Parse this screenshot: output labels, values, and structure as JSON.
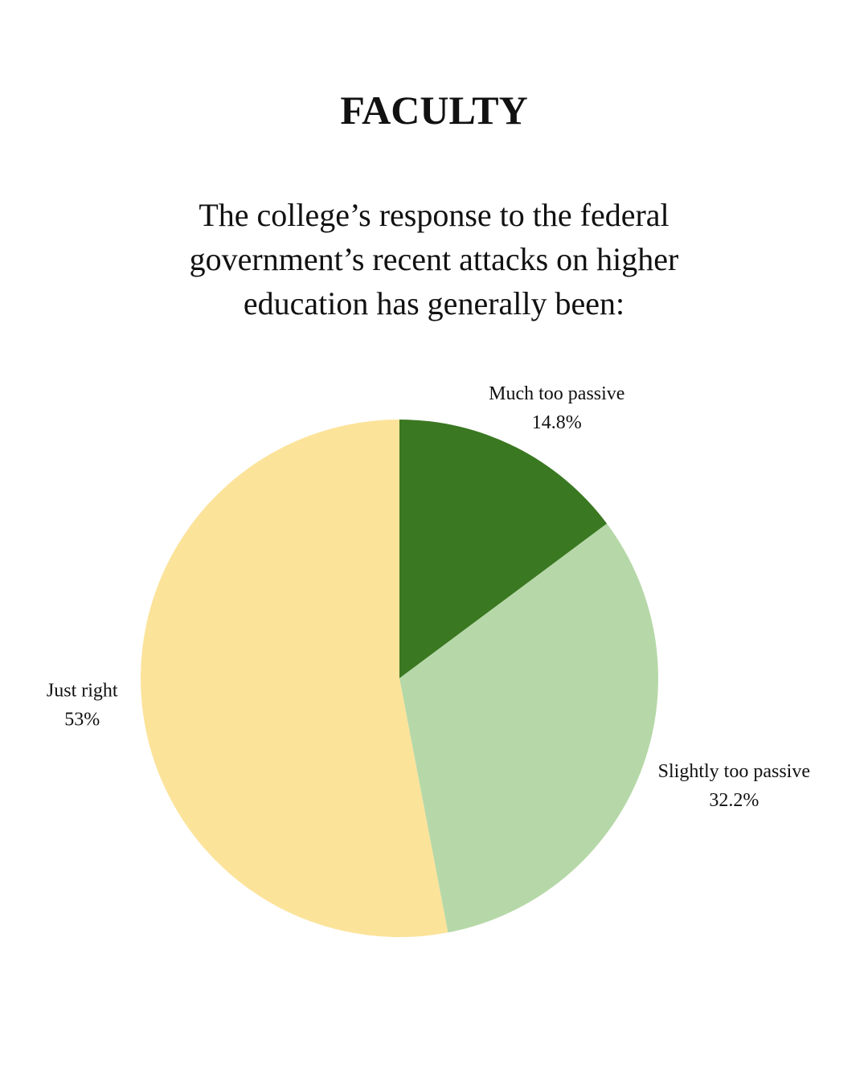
{
  "chart_data": {
    "type": "pie",
    "title": "FACULTY",
    "subtitle": "The college’s response to the federal government’s recent attacks on higher education has generally been:",
    "categories": [
      "Much too passive",
      "Slightly too passive",
      "Just right"
    ],
    "values": [
      14.8,
      32.2,
      53
    ],
    "value_labels": [
      "14.8%",
      "32.2%",
      "53%"
    ],
    "colors": [
      "#3a7821",
      "#b6d8a8",
      "#fce39a"
    ],
    "start_angle": "top",
    "direction": "clockwise"
  }
}
